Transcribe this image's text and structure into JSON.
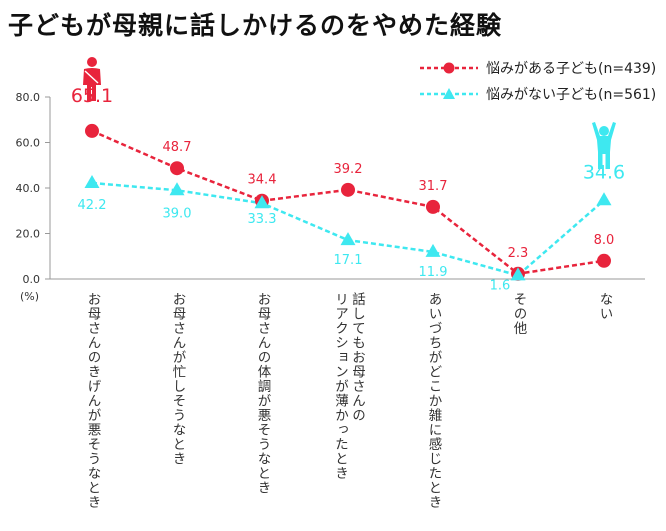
{
  "chart_data": {
    "type": "line",
    "title": "子どもが母親に話しかけるのをやめた経験",
    "ylabel": "(%)",
    "ylim": [
      0,
      80
    ],
    "yticks": [
      "0.0",
      "20.0",
      "40.0",
      "60.0",
      "80.0"
    ],
    "categories": [
      "お母さんのきげんが悪そうなとき",
      "お母さんが忙しそうなとき",
      "お母さんの体調が悪そうなとき",
      "話してもお母さんの\nリアクションが薄かったとき",
      "あいづちがどこか雑に感じたとき",
      "その他",
      "ない"
    ],
    "series": [
      {
        "name": "悩みがある子ども(n=439)",
        "color": "#e8243c",
        "marker": "circle",
        "line": "dashed",
        "values": [
          65.1,
          48.7,
          34.4,
          39.2,
          31.7,
          2.3,
          8.0
        ],
        "labels": [
          "65.1",
          "48.7",
          "34.4",
          "39.2",
          "31.7",
          "2.3",
          "8.0"
        ]
      },
      {
        "name": "悩みがない子ども(n=561)",
        "color": "#3ee8f0",
        "marker": "triangle",
        "line": "dashed",
        "values": [
          42.2,
          39.0,
          33.3,
          17.1,
          11.9,
          1.6,
          34.6
        ],
        "labels": [
          "42.2",
          "39.0",
          "33.3",
          "17.1",
          "11.9",
          "1.6",
          "34.6"
        ]
      }
    ],
    "grid": false,
    "legend": "top-right",
    "icons": [
      "worried-child-icon",
      "happy-child-icon"
    ]
  }
}
